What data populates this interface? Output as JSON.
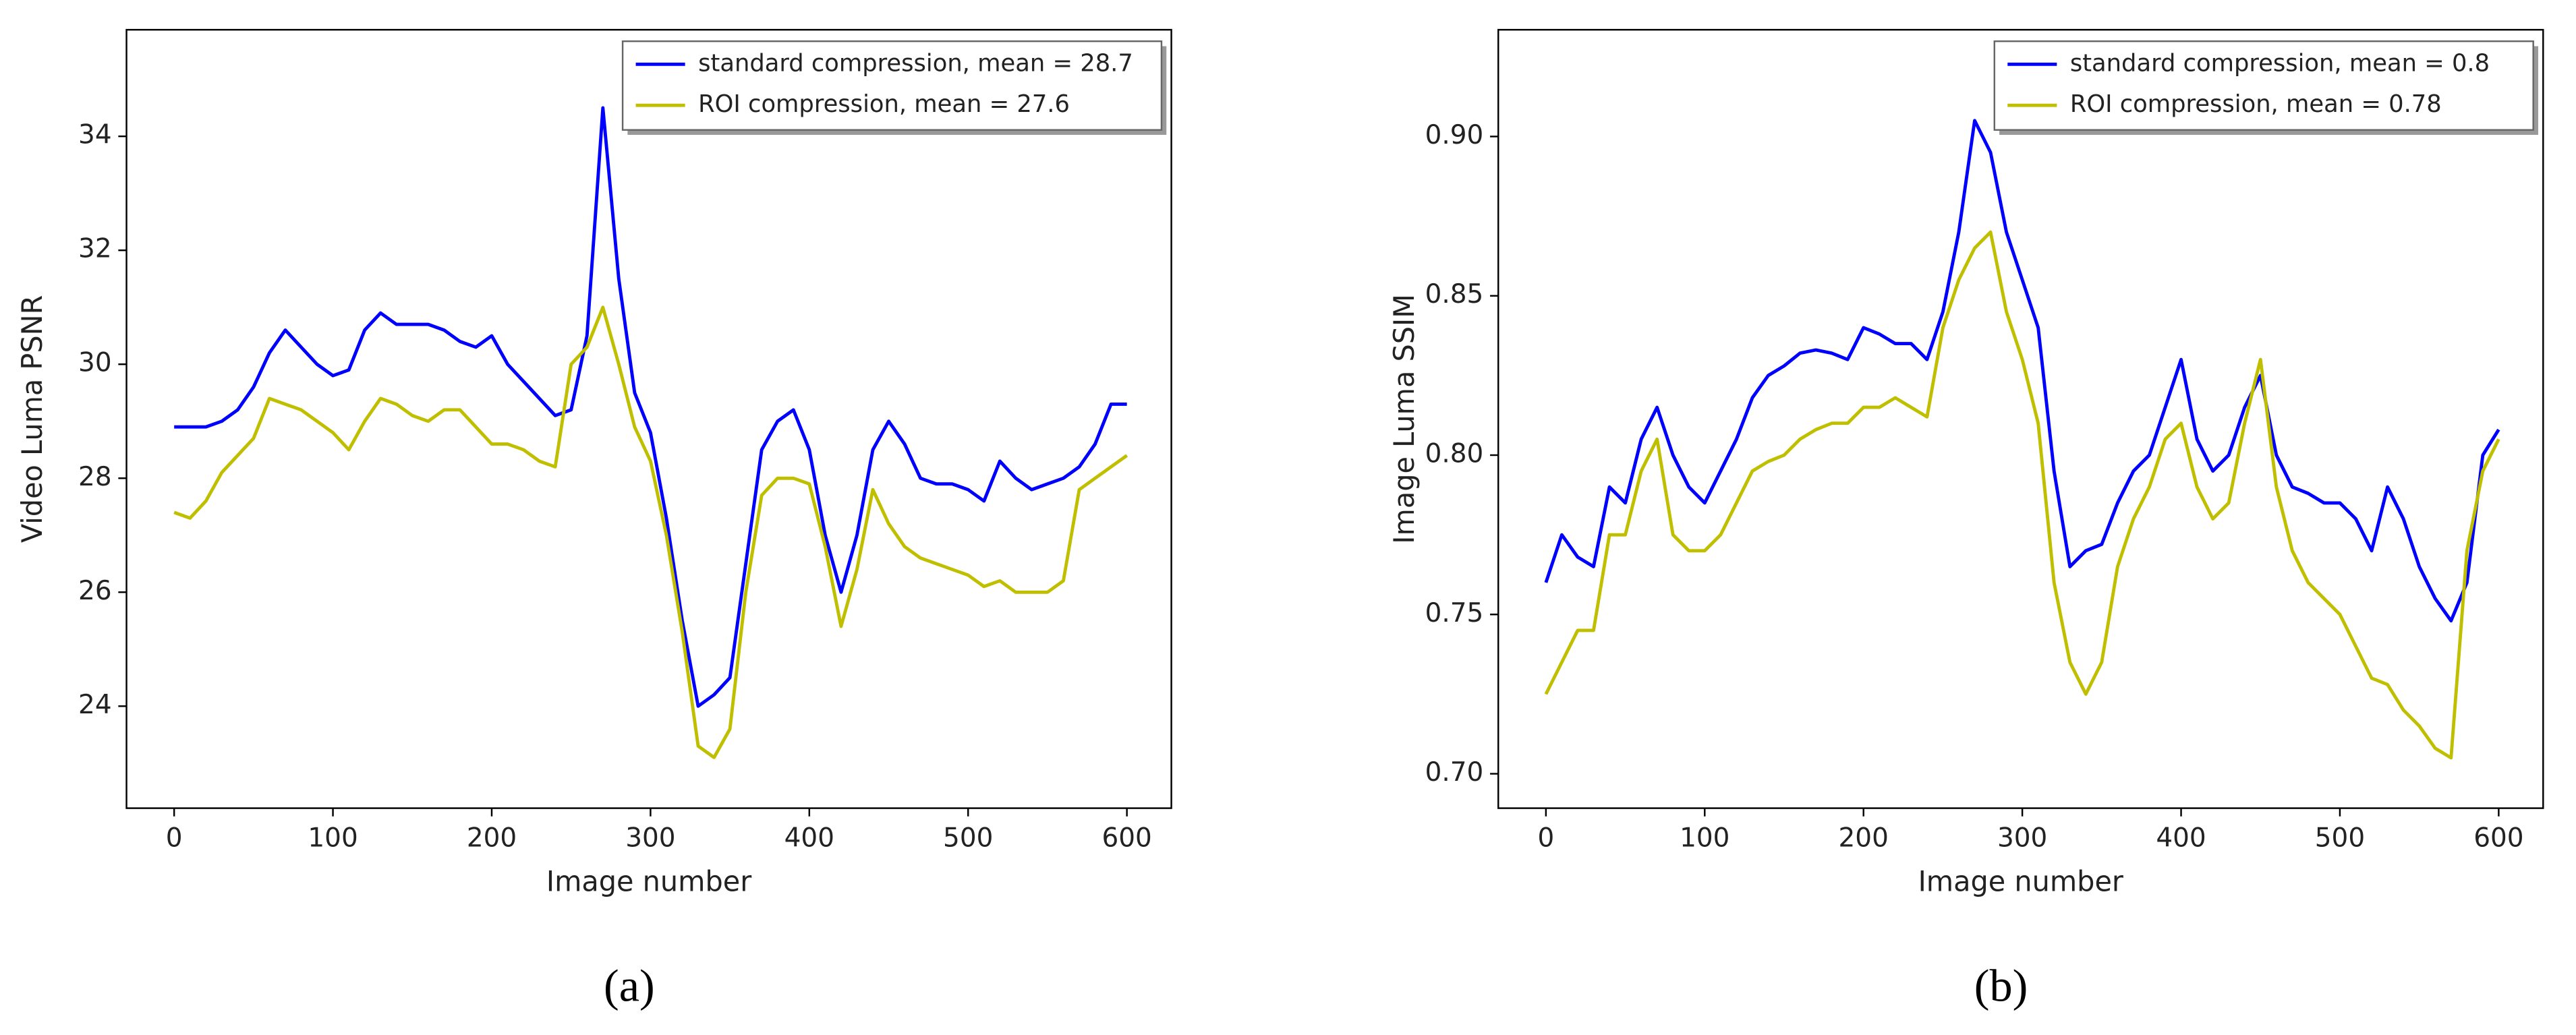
{
  "chart_data": [
    {
      "type": "line",
      "caption": "(a)",
      "xlabel": "Image number",
      "ylabel": "Video Luma PSNR",
      "x": [
        0,
        10,
        20,
        30,
        40,
        50,
        60,
        70,
        80,
        90,
        100,
        110,
        120,
        130,
        140,
        150,
        160,
        170,
        180,
        190,
        200,
        210,
        220,
        230,
        240,
        250,
        260,
        270,
        280,
        290,
        300,
        310,
        320,
        330,
        340,
        350,
        360,
        370,
        380,
        390,
        400,
        410,
        420,
        430,
        440,
        450,
        460,
        470,
        480,
        490,
        500,
        510,
        520,
        530,
        540,
        550,
        560,
        570,
        580,
        590,
        600
      ],
      "series": [
        {
          "name": "standard compression, mean = 28.7",
          "color": "#0000ff",
          "values": [
            28.9,
            28.9,
            28.9,
            29.0,
            29.2,
            29.6,
            30.2,
            30.6,
            30.3,
            30.0,
            29.8,
            29.9,
            30.6,
            30.9,
            30.7,
            30.7,
            30.7,
            30.6,
            30.4,
            30.3,
            30.5,
            30.0,
            29.7,
            29.4,
            29.1,
            29.2,
            30.5,
            34.5,
            31.5,
            29.5,
            28.8,
            27.3,
            25.5,
            24.0,
            24.2,
            24.5,
            26.5,
            28.5,
            29.0,
            29.2,
            28.5,
            27.0,
            26.0,
            27.0,
            28.5,
            29.0,
            28.6,
            28.0,
            27.9,
            27.9,
            27.8,
            27.6,
            28.3,
            28.0,
            27.8,
            27.9,
            28.0,
            28.2,
            28.6,
            29.3,
            29.3
          ]
        },
        {
          "name": "ROI compression, mean = 27.6",
          "color": "#bfbf00",
          "values": [
            27.4,
            27.3,
            27.6,
            28.1,
            28.4,
            28.7,
            29.4,
            29.3,
            29.2,
            29.0,
            28.8,
            28.5,
            29.0,
            29.4,
            29.3,
            29.1,
            29.0,
            29.2,
            29.2,
            28.9,
            28.6,
            28.6,
            28.5,
            28.3,
            28.2,
            30.0,
            30.3,
            31.0,
            30.0,
            28.9,
            28.3,
            27.0,
            25.3,
            23.3,
            23.1,
            23.6,
            26.0,
            27.7,
            28.0,
            28.0,
            27.9,
            26.8,
            25.4,
            26.4,
            27.8,
            27.2,
            26.8,
            26.6,
            26.5,
            26.4,
            26.3,
            26.1,
            26.2,
            26.0,
            26.0,
            26.0,
            26.2,
            27.8,
            28.0,
            28.2,
            28.4
          ]
        }
      ],
      "xlim": [
        -30,
        628
      ],
      "xticks": [
        0,
        100,
        200,
        300,
        400,
        500,
        600
      ],
      "ylim": [
        22.21,
        35.87
      ],
      "yticks": [
        24,
        26,
        28,
        30,
        32,
        34
      ],
      "legend": "upper right"
    },
    {
      "type": "line",
      "caption": "(b)",
      "xlabel": "Image number",
      "ylabel": "Image Luma SSIM",
      "x": [
        0,
        10,
        20,
        30,
        40,
        50,
        60,
        70,
        80,
        90,
        100,
        110,
        120,
        130,
        140,
        150,
        160,
        170,
        180,
        190,
        200,
        210,
        220,
        230,
        240,
        250,
        260,
        270,
        280,
        290,
        300,
        310,
        320,
        330,
        340,
        350,
        360,
        370,
        380,
        390,
        400,
        410,
        420,
        430,
        440,
        450,
        460,
        470,
        480,
        490,
        500,
        510,
        520,
        530,
        540,
        550,
        560,
        570,
        580,
        590,
        600
      ],
      "series": [
        {
          "name": "standard compression, mean = 0.8",
          "color": "#0000ff",
          "values": [
            0.76,
            0.775,
            0.768,
            0.765,
            0.79,
            0.785,
            0.805,
            0.815,
            0.8,
            0.79,
            0.785,
            0.795,
            0.805,
            0.818,
            0.825,
            0.828,
            0.832,
            0.833,
            0.832,
            0.83,
            0.84,
            0.838,
            0.835,
            0.835,
            0.83,
            0.845,
            0.87,
            0.905,
            0.895,
            0.87,
            0.855,
            0.84,
            0.795,
            0.765,
            0.77,
            0.772,
            0.785,
            0.795,
            0.8,
            0.815,
            0.83,
            0.805,
            0.795,
            0.8,
            0.815,
            0.825,
            0.8,
            0.79,
            0.788,
            0.785,
            0.785,
            0.78,
            0.77,
            0.79,
            0.78,
            0.765,
            0.755,
            0.748,
            0.76,
            0.8,
            0.808
          ]
        },
        {
          "name": "ROI compression, mean = 0.78",
          "color": "#bfbf00",
          "values": [
            0.725,
            0.735,
            0.745,
            0.745,
            0.775,
            0.775,
            0.795,
            0.805,
            0.775,
            0.77,
            0.77,
            0.775,
            0.785,
            0.795,
            0.798,
            0.8,
            0.805,
            0.808,
            0.81,
            0.81,
            0.815,
            0.815,
            0.818,
            0.815,
            0.812,
            0.84,
            0.855,
            0.865,
            0.87,
            0.845,
            0.83,
            0.81,
            0.76,
            0.735,
            0.725,
            0.735,
            0.765,
            0.78,
            0.79,
            0.805,
            0.81,
            0.79,
            0.78,
            0.785,
            0.81,
            0.83,
            0.79,
            0.77,
            0.76,
            0.755,
            0.75,
            0.74,
            0.73,
            0.728,
            0.72,
            0.715,
            0.708,
            0.705,
            0.77,
            0.795,
            0.805
          ]
        }
      ],
      "xlim": [
        -30,
        628
      ],
      "xticks": [
        0,
        100,
        200,
        300,
        400,
        500,
        600
      ],
      "ylim": [
        0.6892,
        0.9335
      ],
      "yticks": [
        {
          "value": 0.7,
          "label": "0.70"
        },
        0.75,
        {
          "value": 0.8,
          "label": "0.80"
        },
        0.85,
        {
          "value": 0.9,
          "label": "0.90"
        }
      ],
      "legend": "upper right"
    }
  ]
}
